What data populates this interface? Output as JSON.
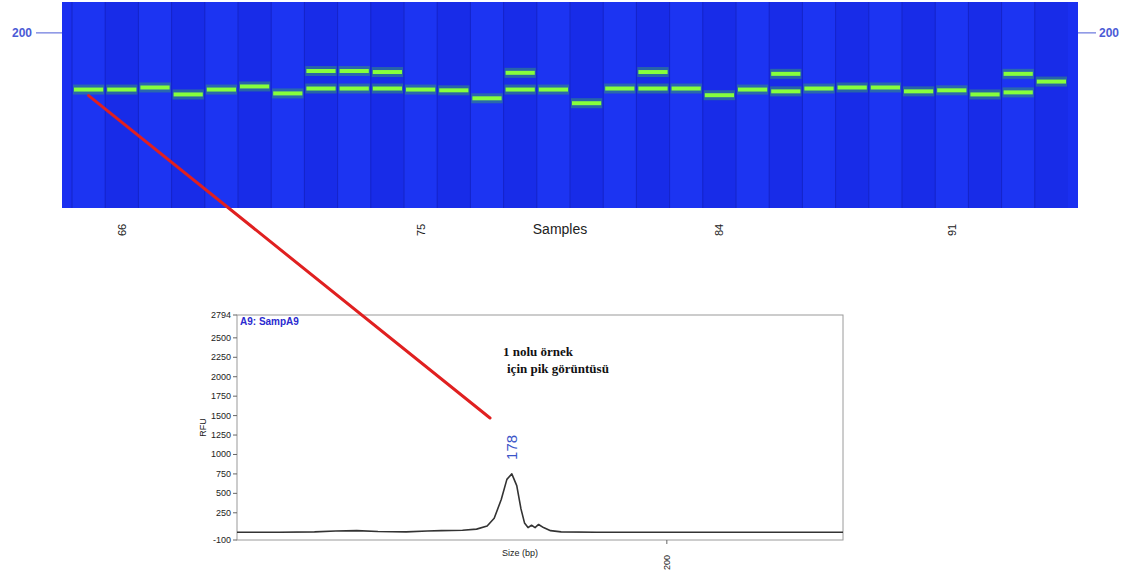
{
  "chart_data": [
    {
      "type": "gel",
      "xlabel": "Samples",
      "categories": [
        null,
        "66",
        null,
        null,
        null,
        null,
        null,
        null,
        null,
        null,
        "75",
        null,
        null,
        null,
        null,
        null,
        null,
        null,
        null,
        "84",
        null,
        null,
        null,
        null,
        null,
        null,
        "91",
        null,
        null,
        null
      ],
      "values": [
        [
          178
        ],
        [
          178
        ],
        [
          178.8
        ],
        [
          176.1
        ],
        [
          178
        ],
        [
          179.2
        ],
        [
          176.5
        ],
        [
          178.4,
          185.2
        ],
        [
          178.4,
          185.2
        ],
        [
          178.4,
          184.8
        ],
        [
          178
        ],
        [
          177.7
        ],
        [
          174.6
        ],
        [
          178,
          184.5
        ],
        [
          178
        ],
        [
          172.7
        ],
        [
          178.4
        ],
        [
          178.4,
          184.8
        ],
        [
          178.4
        ],
        [
          175.8
        ],
        [
          178
        ],
        [
          177.3,
          184.1
        ],
        [
          178.4
        ],
        [
          178.8
        ],
        [
          178.8
        ],
        [
          177.3
        ],
        [
          177.7
        ],
        [
          176.1
        ],
        [
          176.9,
          184.1
        ],
        [
          181.1
        ]
      ],
      "ylim": [
        132,
        212
      ],
      "yticks": [
        200
      ],
      "color": "#86ff3c"
    },
    {
      "type": "line",
      "title": "A9: SampA9",
      "xlabel": "Size (bp)",
      "ylabel": "RFU",
      "x": [
        139,
        145,
        150,
        153,
        156,
        159,
        163,
        166,
        168,
        171,
        173,
        174.5,
        175.5,
        176.5,
        177.3,
        178,
        178.7,
        179.3,
        179.8,
        180.3,
        180.8,
        181.3,
        181.8,
        182.5,
        183.5,
        185,
        190,
        200,
        210,
        225
      ],
      "values": [
        0,
        0,
        5,
        15,
        20,
        10,
        5,
        15,
        20,
        25,
        40,
        80,
        180,
        420,
        680,
        750,
        600,
        300,
        120,
        60,
        90,
        60,
        100,
        60,
        20,
        5,
        0,
        0,
        0,
        0
      ],
      "xlim": [
        139,
        225
      ],
      "xticks": [
        200
      ],
      "ylim": [
        -100,
        2794
      ],
      "yticks": [
        2794,
        2500,
        2250,
        2000,
        1750,
        1500,
        1250,
        1000,
        750,
        500,
        250,
        -100
      ],
      "color": "#333333",
      "annotation": [
        "1 nolu örnek",
        "için pik görüntüsü"
      ],
      "peak": {
        "x": 178,
        "y": 750
      }
    }
  ]
}
